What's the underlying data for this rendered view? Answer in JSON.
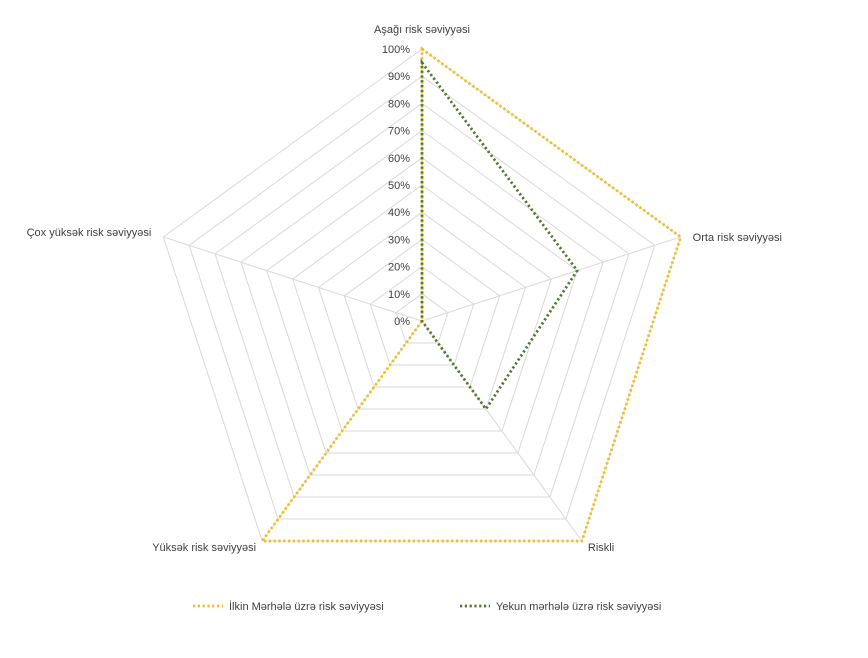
{
  "chart_data": {
    "type": "radar",
    "categories": [
      "Aşağı risk səviyyəsi",
      "Orta risk səviyyəsi",
      "Riskli",
      "Yüksək risk səviyyəsi",
      "Çox yüksək risk səviyyəsi"
    ],
    "ticks": [
      "0%",
      "10%",
      "20%",
      "30%",
      "40%",
      "50%",
      "60%",
      "70%",
      "80%",
      "90%",
      "100%"
    ],
    "rlim": [
      0,
      100
    ],
    "grid": true,
    "legend_position": "bottom",
    "series": [
      {
        "name": "İlkin Mərhələ üzrə risk səviyyəsi",
        "values": [
          100,
          100,
          100,
          100,
          0
        ],
        "color": "#F2BD1D"
      },
      {
        "name": "Yekun mərhələ üzrə risk səviyyəsi",
        "values": [
          95,
          60,
          40,
          0,
          0
        ],
        "color": "#4E7A27"
      }
    ]
  }
}
